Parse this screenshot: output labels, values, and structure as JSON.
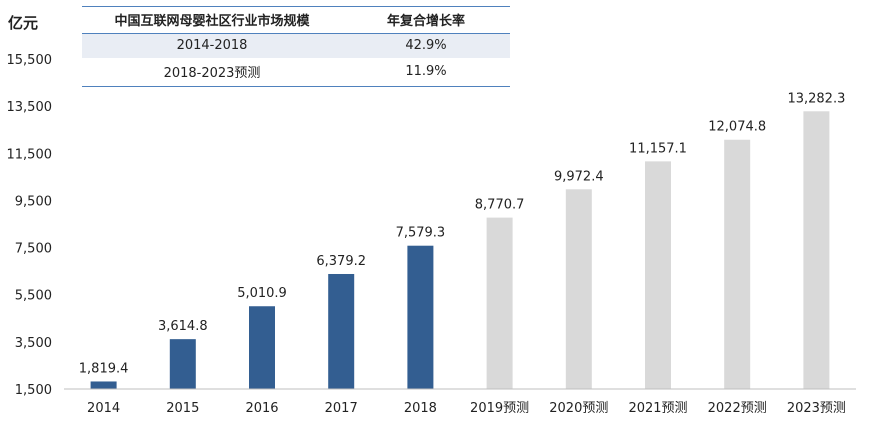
{
  "table": {
    "headers": [
      "中国互联网母婴社区行业市场规模",
      "年复合增长率"
    ],
    "rows": [
      [
        "2014-2018",
        "42.9%"
      ],
      [
        "2018-2023预测",
        "11.9%"
      ]
    ]
  },
  "chart_data": {
    "type": "bar",
    "ylabel": "亿元",
    "categories": [
      "2014",
      "2015",
      "2016",
      "2017",
      "2018",
      "2019预测",
      "2020预测",
      "2021预测",
      "2022预测",
      "2023预测"
    ],
    "values": [
      1819.4,
      3614.8,
      5010.9,
      6379.2,
      7579.3,
      8770.7,
      9972.4,
      11157.1,
      12074.8,
      13282.3
    ],
    "value_labels": [
      "1,819.4",
      "3,614.8",
      "5,010.9",
      "6,379.2",
      "7,579.3",
      "8,770.7",
      "9,972.4",
      "11,157.1",
      "12,074.8",
      "13,282.3"
    ],
    "forecast": [
      false,
      false,
      false,
      false,
      false,
      true,
      true,
      true,
      true,
      true
    ],
    "yticks": [
      1500,
      3500,
      5500,
      7500,
      9500,
      11500,
      13500,
      15500
    ],
    "ytick_labels": [
      "1,500",
      "3,500",
      "5,500",
      "7,500",
      "9,500",
      "11,500",
      "13,500",
      "15,500"
    ],
    "ylim": [
      1500,
      15500
    ],
    "grid": false,
    "colors": {
      "actual": "#335e91",
      "forecast": "#d9d9d9"
    }
  }
}
